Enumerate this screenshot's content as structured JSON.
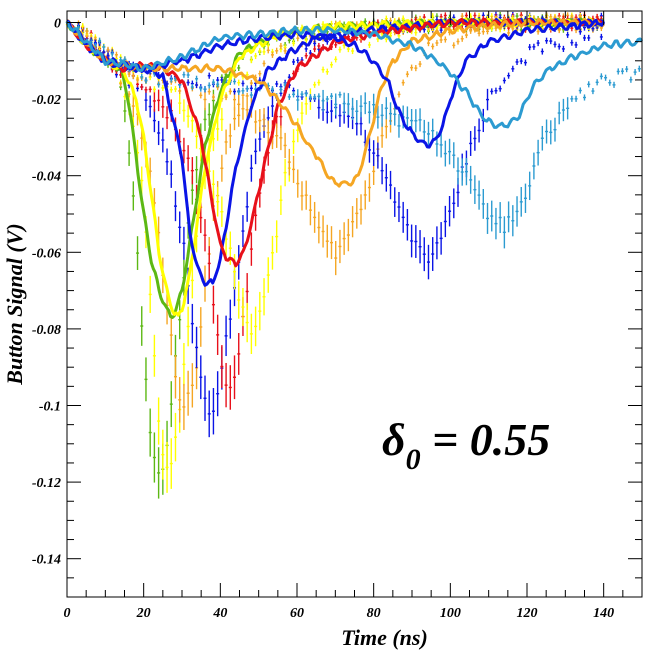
{
  "chart_data": {
    "type": "line",
    "title": "",
    "xlabel": "Time (ns)",
    "ylabel": "Button Signal (V)",
    "xlim": [
      0,
      150
    ],
    "ylim": [
      -0.15,
      0.003
    ],
    "x_ticks": [
      0,
      20,
      40,
      60,
      80,
      100,
      120,
      140
    ],
    "y_ticks": [
      0,
      -0.02,
      -0.04,
      -0.06,
      -0.08,
      -0.1,
      -0.12,
      -0.14
    ],
    "x_tick_labels": [
      "0",
      "20",
      "40",
      "60",
      "80",
      "100",
      "120",
      "140"
    ],
    "y_tick_labels": [
      "0",
      "-0.02",
      "-0.04",
      "-0.06",
      "-0.08",
      "-0.1",
      "-0.12",
      "-0.14"
    ],
    "annotation": {
      "symbol": "δ",
      "subscript": "0",
      "text": " = 0.55"
    },
    "grid": false,
    "legend": "none",
    "series": [
      {
        "color": "#5cb814",
        "style": "errorbar",
        "x": [
          3,
          8,
          13,
          16,
          18,
          20,
          22,
          24,
          26,
          28,
          30,
          32,
          35,
          40,
          50,
          60,
          80,
          100,
          140
        ],
        "y": [
          -0.002,
          -0.006,
          -0.012,
          -0.03,
          -0.055,
          -0.085,
          -0.11,
          -0.12,
          -0.11,
          -0.09,
          -0.07,
          -0.05,
          -0.03,
          -0.015,
          -0.006,
          -0.003,
          -0.001,
          0,
          0
        ]
      },
      {
        "color": "#ffff00",
        "style": "errorbar",
        "x": [
          3,
          8,
          13,
          17,
          20,
          22,
          24,
          26,
          28,
          30,
          32,
          34,
          37,
          42,
          50,
          60,
          80,
          100,
          140
        ],
        "y": [
          -0.002,
          -0.006,
          -0.012,
          -0.025,
          -0.045,
          -0.075,
          -0.105,
          -0.118,
          -0.11,
          -0.095,
          -0.075,
          -0.055,
          -0.035,
          -0.018,
          -0.008,
          -0.003,
          -0.001,
          0,
          0
        ]
      },
      {
        "color": "#f5a623",
        "style": "errorbar",
        "x": [
          3,
          8,
          13,
          18,
          22,
          25,
          28,
          30,
          32,
          34,
          36,
          38,
          42,
          48,
          55,
          65,
          80,
          100,
          140
        ],
        "y": [
          -0.002,
          -0.006,
          -0.012,
          -0.022,
          -0.04,
          -0.065,
          -0.09,
          -0.1,
          -0.098,
          -0.088,
          -0.07,
          -0.05,
          -0.03,
          -0.015,
          -0.006,
          -0.003,
          -0.001,
          0,
          0
        ]
      },
      {
        "color": "#0a14e6",
        "style": "errorbar",
        "x": [
          3,
          8,
          13,
          20,
          25,
          30,
          33,
          36,
          38,
          40,
          42,
          45,
          48,
          52,
          60,
          70,
          85,
          100,
          140
        ],
        "y": [
          -0.002,
          -0.006,
          -0.012,
          -0.018,
          -0.03,
          -0.055,
          -0.08,
          -0.1,
          -0.104,
          -0.095,
          -0.08,
          -0.06,
          -0.04,
          -0.025,
          -0.01,
          -0.004,
          -0.001,
          0,
          0
        ]
      },
      {
        "color": "#e8101a",
        "style": "errorbar",
        "x": [
          3,
          8,
          13,
          20,
          28,
          34,
          38,
          40,
          42,
          44,
          46,
          48,
          50,
          54,
          60,
          70,
          85,
          100,
          140
        ],
        "y": [
          -0.002,
          -0.006,
          -0.012,
          -0.016,
          -0.025,
          -0.045,
          -0.07,
          -0.088,
          -0.095,
          -0.09,
          -0.078,
          -0.06,
          -0.045,
          -0.028,
          -0.012,
          -0.004,
          -0.001,
          0,
          0
        ]
      },
      {
        "color": "#ffff00",
        "style": "errorbar",
        "x": [
          3,
          10,
          20,
          30,
          38,
          42,
          45,
          48,
          50,
          52,
          54,
          56,
          60,
          66,
          75,
          90,
          110,
          140
        ],
        "y": [
          -0.002,
          -0.008,
          -0.014,
          -0.02,
          -0.04,
          -0.058,
          -0.072,
          -0.08,
          -0.078,
          -0.07,
          -0.06,
          -0.045,
          -0.028,
          -0.014,
          -0.005,
          -0.001,
          0,
          0
        ]
      },
      {
        "color": "#f5a623",
        "style": "errorbar",
        "x": [
          3,
          10,
          20,
          35,
          45,
          55,
          62,
          66,
          68,
          70,
          72,
          75,
          78,
          82,
          88,
          95,
          110,
          140
        ],
        "y": [
          -0.002,
          -0.008,
          -0.014,
          -0.018,
          -0.02,
          -0.03,
          -0.045,
          -0.055,
          -0.058,
          -0.06,
          -0.058,
          -0.052,
          -0.045,
          -0.03,
          -0.015,
          -0.006,
          -0.001,
          0
        ],
        "note": ""
      },
      {
        "color": "#0a14e6",
        "style": "errorbar",
        "x": [
          3,
          10,
          20,
          40,
          60,
          75,
          82,
          86,
          90,
          93,
          95,
          97,
          100,
          104,
          110,
          120,
          140
        ],
        "y": [
          -0.002,
          -0.008,
          -0.014,
          -0.016,
          -0.018,
          -0.025,
          -0.038,
          -0.048,
          -0.056,
          -0.06,
          -0.061,
          -0.058,
          -0.05,
          -0.036,
          -0.02,
          -0.008,
          -0.002
        ]
      },
      {
        "color": "#2c9bd1",
        "style": "errorbar",
        "x": [
          3,
          10,
          20,
          40,
          70,
          95,
          104,
          108,
          112,
          114,
          116,
          118,
          120,
          124,
          130,
          138,
          146,
          150
        ],
        "y": [
          -0.002,
          -0.008,
          -0.014,
          -0.016,
          -0.02,
          -0.028,
          -0.04,
          -0.048,
          -0.052,
          -0.053,
          -0.052,
          -0.05,
          -0.044,
          -0.032,
          -0.022,
          -0.016,
          -0.014,
          -0.013
        ]
      },
      {
        "color": "#5cb814",
        "style": "line",
        "x": [
          0,
          5,
          10,
          14,
          16,
          18,
          20,
          22,
          24,
          26,
          27,
          28,
          30,
          32,
          34,
          36,
          40,
          45,
          55,
          70,
          100,
          140
        ],
        "y": [
          0,
          -0.006,
          -0.01,
          -0.012,
          -0.02,
          -0.035,
          -0.05,
          -0.062,
          -0.07,
          -0.075,
          -0.077,
          -0.076,
          -0.07,
          -0.058,
          -0.045,
          -0.032,
          -0.018,
          -0.008,
          -0.003,
          -0.001,
          0,
          0
        ]
      },
      {
        "color": "#ffff00",
        "style": "line",
        "x": [
          0,
          5,
          10,
          15,
          18,
          20,
          22,
          24,
          26,
          28,
          29,
          30,
          32,
          34,
          36,
          40,
          45,
          55,
          70,
          100,
          140
        ],
        "y": [
          0,
          -0.006,
          -0.01,
          -0.013,
          -0.02,
          -0.03,
          -0.045,
          -0.06,
          -0.07,
          -0.076,
          -0.077,
          -0.075,
          -0.066,
          -0.052,
          -0.038,
          -0.02,
          -0.009,
          -0.003,
          -0.001,
          0,
          0
        ]
      },
      {
        "color": "#0a14e6",
        "style": "line",
        "x": [
          0,
          5,
          10,
          15,
          20,
          25,
          30,
          32,
          34,
          36,
          38,
          40,
          42,
          44,
          48,
          52,
          58,
          65,
          80,
          100,
          140
        ],
        "y": [
          0,
          -0.006,
          -0.01,
          -0.012,
          -0.012,
          -0.014,
          -0.035,
          -0.055,
          -0.064,
          -0.068,
          -0.068,
          -0.062,
          -0.05,
          -0.038,
          -0.022,
          -0.013,
          -0.008,
          -0.004,
          -0.002,
          0,
          0
        ]
      },
      {
        "color": "#e8101a",
        "style": "line",
        "x": [
          0,
          5,
          10,
          15,
          20,
          25,
          30,
          35,
          38,
          40,
          42,
          44,
          46,
          48,
          50,
          52,
          55,
          60,
          70,
          85,
          100,
          140
        ],
        "y": [
          0,
          -0.006,
          -0.01,
          -0.012,
          -0.011,
          -0.012,
          -0.015,
          -0.03,
          -0.048,
          -0.058,
          -0.062,
          -0.063,
          -0.06,
          -0.053,
          -0.044,
          -0.035,
          -0.022,
          -0.012,
          -0.005,
          -0.002,
          0,
          0
        ]
      },
      {
        "color": "#f5a623",
        "style": "line",
        "x": [
          0,
          10,
          20,
          30,
          40,
          50,
          55,
          60,
          63,
          66,
          68,
          70,
          72,
          74,
          76,
          78,
          80,
          82,
          85,
          90,
          100,
          120,
          140
        ],
        "y": [
          0,
          -0.01,
          -0.012,
          -0.012,
          -0.012,
          -0.015,
          -0.02,
          -0.027,
          -0.032,
          -0.036,
          -0.04,
          -0.042,
          -0.042,
          -0.042,
          -0.04,
          -0.033,
          -0.025,
          -0.017,
          -0.01,
          -0.005,
          -0.002,
          0,
          0
        ]
      },
      {
        "color": "#0a14e6",
        "style": "line",
        "x": [
          0,
          10,
          20,
          30,
          40,
          50,
          60,
          70,
          75,
          80,
          84,
          86,
          88,
          90,
          92,
          94,
          96,
          98,
          100,
          104,
          110,
          120,
          130,
          140
        ],
        "y": [
          0,
          -0.01,
          -0.012,
          -0.01,
          -0.006,
          -0.004,
          -0.003,
          -0.004,
          -0.006,
          -0.01,
          -0.016,
          -0.022,
          -0.026,
          -0.029,
          -0.031,
          -0.032,
          -0.031,
          -0.027,
          -0.02,
          -0.01,
          -0.005,
          -0.002,
          -0.001,
          0
        ]
      },
      {
        "color": "#2c9bd1",
        "style": "line",
        "x": [
          0,
          10,
          20,
          30,
          40,
          50,
          60,
          70,
          80,
          90,
          95,
          100,
          104,
          106,
          108,
          110,
          112,
          114,
          116,
          118,
          120,
          122,
          126,
          132,
          140,
          150
        ],
        "y": [
          0,
          -0.01,
          -0.012,
          -0.009,
          -0.004,
          -0.003,
          -0.002,
          -0.002,
          -0.003,
          -0.006,
          -0.009,
          -0.013,
          -0.018,
          -0.021,
          -0.024,
          -0.026,
          -0.027,
          -0.027,
          -0.026,
          -0.024,
          -0.02,
          -0.016,
          -0.012,
          -0.009,
          -0.006,
          -0.005
        ]
      }
    ]
  }
}
